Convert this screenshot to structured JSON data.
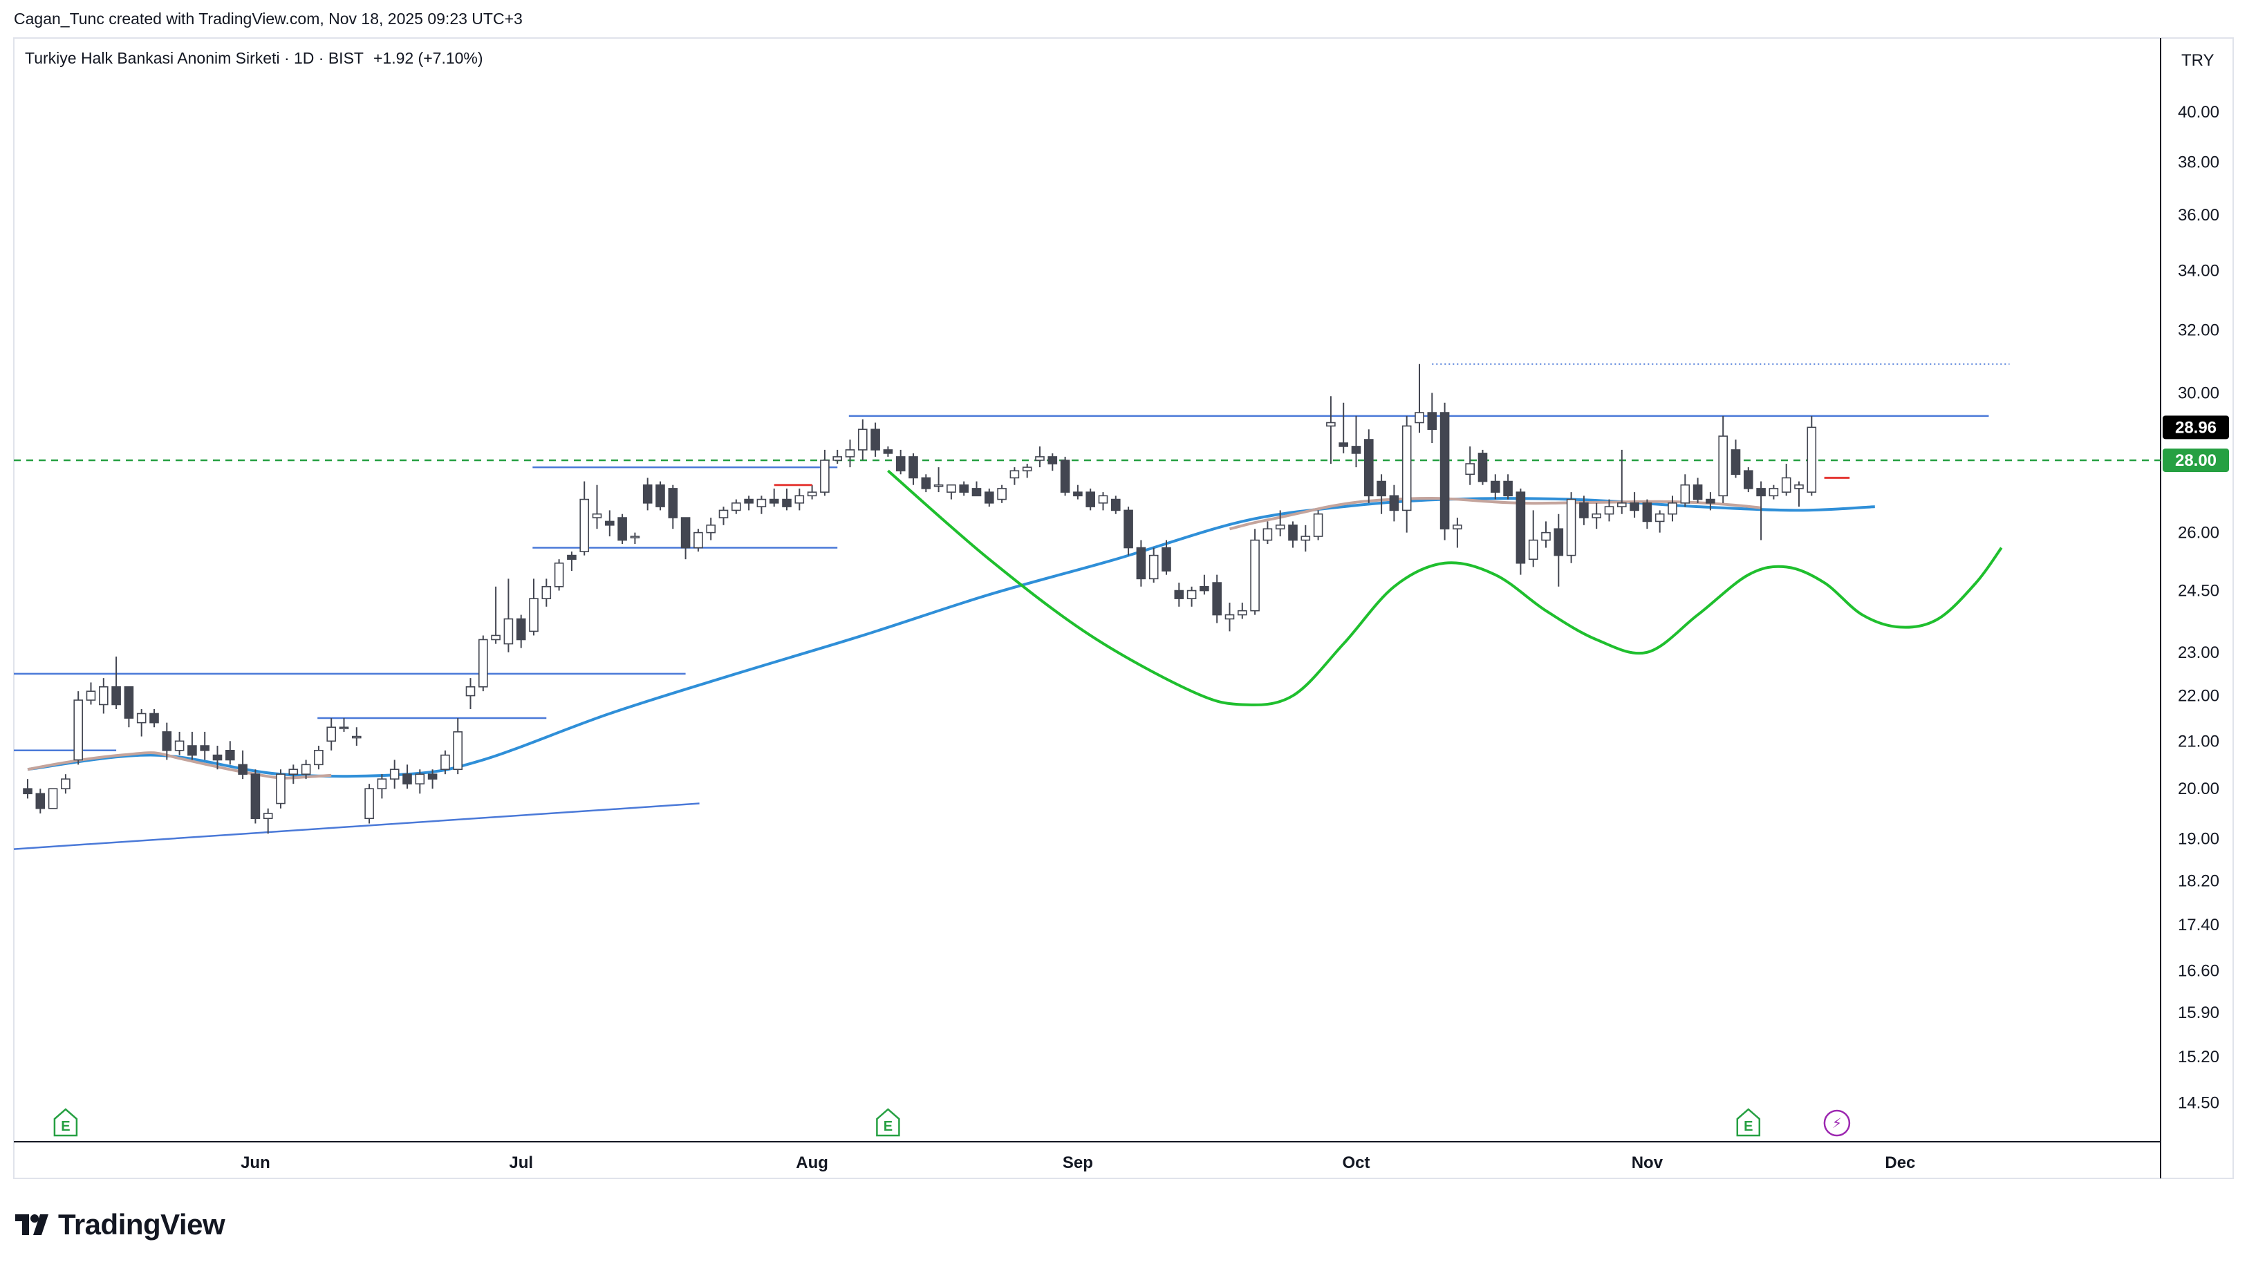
{
  "header": {
    "credit": "Cagan_Tunc created with TradingView.com, Nov 18, 2025 09:23 UTC+3"
  },
  "footer": {
    "brand": "TradingView"
  },
  "colors": {
    "up_body": "#ffffff",
    "down_body": "#434651",
    "wick": "#434651",
    "ma_blue": "#2f8fd8",
    "ma_brown": "#c4a49c",
    "trend_line": "#4a79d8",
    "curve_green": "#1fbf2e",
    "dashed_green": "#26a042",
    "tag_price_bg": "#000000",
    "tag_level_bg": "#26a042",
    "red_marker": "#e53935",
    "event_green": "#26a042",
    "event_purple": "#9c27b0"
  },
  "chart_data": {
    "type": "candlestick",
    "title": "Turkiye Halk Bankasi Anonim Sirketi · 1D · BIST",
    "change": "+1.92 (+7.10%)",
    "currency": "TRY",
    "y_scale": "log",
    "ylim": [
      14.0,
      43.0
    ],
    "y_ticks": [
      40.0,
      38.0,
      36.0,
      34.0,
      32.0,
      30.0,
      26.0,
      24.5,
      23.0,
      22.0,
      21.0,
      20.0,
      19.0,
      18.2,
      17.4,
      16.6,
      15.9,
      15.2,
      14.5
    ],
    "x_axis_labels": [
      {
        "date": "2025-06-02",
        "label": "Jun"
      },
      {
        "date": "2025-07-01",
        "label": "Jul"
      },
      {
        "date": "2025-08-01",
        "label": "Aug"
      },
      {
        "date": "2025-09-01",
        "label": "Sep"
      },
      {
        "date": "2025-10-01",
        "label": "Oct"
      },
      {
        "date": "2025-11-03",
        "label": "Nov"
      },
      {
        "date": "2025-12-01",
        "label": "Dec"
      }
    ],
    "last_price": {
      "value": 28.96,
      "label": "28.96"
    },
    "horizontal_level": {
      "value": 28.0,
      "label": "28.00"
    },
    "candles": [
      {
        "o": 20.0,
        "h": 20.2,
        "l": 19.8,
        "c": 19.9
      },
      {
        "o": 19.9,
        "h": 20.0,
        "l": 19.5,
        "c": 19.6
      },
      {
        "o": 19.6,
        "h": 20.0,
        "l": 19.6,
        "c": 20.0
      },
      {
        "o": 20.0,
        "h": 20.3,
        "l": 19.9,
        "c": 20.2
      },
      {
        "o": 20.6,
        "h": 22.1,
        "l": 20.5,
        "c": 21.9
      },
      {
        "o": 21.9,
        "h": 22.3,
        "l": 21.8,
        "c": 22.1
      },
      {
        "o": 21.8,
        "h": 22.4,
        "l": 21.6,
        "c": 22.2
      },
      {
        "o": 22.2,
        "h": 22.9,
        "l": 21.7,
        "c": 21.8
      },
      {
        "o": 22.2,
        "h": 22.2,
        "l": 21.3,
        "c": 21.5
      },
      {
        "o": 21.4,
        "h": 21.7,
        "l": 21.1,
        "c": 21.6
      },
      {
        "o": 21.6,
        "h": 21.7,
        "l": 21.3,
        "c": 21.4
      },
      {
        "o": 21.2,
        "h": 21.4,
        "l": 20.6,
        "c": 20.8
      },
      {
        "o": 20.8,
        "h": 21.2,
        "l": 20.7,
        "c": 21.0
      },
      {
        "o": 20.9,
        "h": 21.2,
        "l": 20.6,
        "c": 20.7
      },
      {
        "o": 20.9,
        "h": 21.2,
        "l": 20.6,
        "c": 20.8
      },
      {
        "o": 20.7,
        "h": 20.9,
        "l": 20.4,
        "c": 20.6
      },
      {
        "o": 20.8,
        "h": 21.0,
        "l": 20.5,
        "c": 20.6
      },
      {
        "o": 20.5,
        "h": 20.8,
        "l": 20.2,
        "c": 20.3
      },
      {
        "o": 20.3,
        "h": 20.4,
        "l": 19.3,
        "c": 19.4
      },
      {
        "o": 19.4,
        "h": 19.6,
        "l": 19.1,
        "c": 19.5
      },
      {
        "o": 19.7,
        "h": 20.4,
        "l": 19.6,
        "c": 20.3
      },
      {
        "o": 20.3,
        "h": 20.5,
        "l": 20.1,
        "c": 20.4
      },
      {
        "o": 20.3,
        "h": 20.6,
        "l": 20.2,
        "c": 20.5
      },
      {
        "o": 20.5,
        "h": 20.9,
        "l": 20.4,
        "c": 20.8
      },
      {
        "o": 21.0,
        "h": 21.5,
        "l": 20.8,
        "c": 21.3
      },
      {
        "o": 21.3,
        "h": 21.5,
        "l": 21.2,
        "c": 21.3
      },
      {
        "o": 21.1,
        "h": 21.3,
        "l": 20.9,
        "c": 21.1
      },
      {
        "o": 19.4,
        "h": 20.1,
        "l": 19.3,
        "c": 20.0
      },
      {
        "o": 20.0,
        "h": 20.3,
        "l": 19.8,
        "c": 20.2
      },
      {
        "o": 20.2,
        "h": 20.6,
        "l": 20.0,
        "c": 20.4
      },
      {
        "o": 20.3,
        "h": 20.5,
        "l": 20.0,
        "c": 20.1
      },
      {
        "o": 20.1,
        "h": 20.4,
        "l": 19.9,
        "c": 20.3
      },
      {
        "o": 20.3,
        "h": 20.4,
        "l": 20.0,
        "c": 20.2
      },
      {
        "o": 20.4,
        "h": 20.8,
        "l": 20.3,
        "c": 20.7
      },
      {
        "o": 20.4,
        "h": 21.5,
        "l": 20.3,
        "c": 21.2
      },
      {
        "o": 22.0,
        "h": 22.4,
        "l": 21.7,
        "c": 22.2
      },
      {
        "o": 22.2,
        "h": 23.4,
        "l": 22.1,
        "c": 23.3
      },
      {
        "o": 23.3,
        "h": 24.6,
        "l": 23.2,
        "c": 23.4
      },
      {
        "o": 23.2,
        "h": 24.8,
        "l": 23.0,
        "c": 23.8
      },
      {
        "o": 23.8,
        "h": 23.9,
        "l": 23.1,
        "c": 23.3
      },
      {
        "o": 23.5,
        "h": 24.8,
        "l": 23.4,
        "c": 24.3
      },
      {
        "o": 24.3,
        "h": 24.8,
        "l": 24.1,
        "c": 24.6
      },
      {
        "o": 24.6,
        "h": 25.3,
        "l": 24.5,
        "c": 25.2
      },
      {
        "o": 25.4,
        "h": 25.5,
        "l": 25.0,
        "c": 25.3
      },
      {
        "o": 25.5,
        "h": 27.4,
        "l": 25.4,
        "c": 26.9
      },
      {
        "o": 26.4,
        "h": 27.3,
        "l": 26.1,
        "c": 26.5
      },
      {
        "o": 26.3,
        "h": 26.6,
        "l": 25.9,
        "c": 26.2
      },
      {
        "o": 26.4,
        "h": 26.5,
        "l": 25.7,
        "c": 25.8
      },
      {
        "o": 25.9,
        "h": 26.0,
        "l": 25.7,
        "c": 25.9
      },
      {
        "o": 27.3,
        "h": 27.5,
        "l": 26.6,
        "c": 26.8
      },
      {
        "o": 27.3,
        "h": 27.4,
        "l": 26.6,
        "c": 26.7
      },
      {
        "o": 27.2,
        "h": 27.3,
        "l": 26.1,
        "c": 26.4
      },
      {
        "o": 26.4,
        "h": 26.4,
        "l": 25.3,
        "c": 25.6
      },
      {
        "o": 25.6,
        "h": 26.1,
        "l": 25.5,
        "c": 26.0
      },
      {
        "o": 26.0,
        "h": 26.4,
        "l": 25.8,
        "c": 26.2
      },
      {
        "o": 26.4,
        "h": 26.7,
        "l": 26.2,
        "c": 26.6
      },
      {
        "o": 26.6,
        "h": 26.9,
        "l": 26.5,
        "c": 26.8
      },
      {
        "o": 26.9,
        "h": 27.0,
        "l": 26.6,
        "c": 26.8
      },
      {
        "o": 26.7,
        "h": 27.0,
        "l": 26.5,
        "c": 26.9
      },
      {
        "o": 26.9,
        "h": 27.2,
        "l": 26.7,
        "c": 26.8
      },
      {
        "o": 26.9,
        "h": 27.2,
        "l": 26.6,
        "c": 26.7
      },
      {
        "o": 26.8,
        "h": 27.2,
        "l": 26.6,
        "c": 27.0
      },
      {
        "o": 27.0,
        "h": 27.3,
        "l": 26.9,
        "c": 27.1
      },
      {
        "o": 27.1,
        "h": 28.3,
        "l": 27.0,
        "c": 28.0
      },
      {
        "o": 28.0,
        "h": 28.3,
        "l": 27.9,
        "c": 28.1
      },
      {
        "o": 28.1,
        "h": 28.6,
        "l": 27.8,
        "c": 28.3
      },
      {
        "o": 28.3,
        "h": 29.2,
        "l": 28.0,
        "c": 28.9
      },
      {
        "o": 28.9,
        "h": 29.1,
        "l": 28.1,
        "c": 28.3
      },
      {
        "o": 28.3,
        "h": 28.4,
        "l": 28.1,
        "c": 28.2
      },
      {
        "o": 28.1,
        "h": 28.3,
        "l": 27.6,
        "c": 27.7
      },
      {
        "o": 28.1,
        "h": 28.2,
        "l": 27.3,
        "c": 27.5
      },
      {
        "o": 27.5,
        "h": 27.6,
        "l": 27.1,
        "c": 27.2
      },
      {
        "o": 27.3,
        "h": 27.8,
        "l": 27.1,
        "c": 27.3
      },
      {
        "o": 27.1,
        "h": 27.3,
        "l": 26.9,
        "c": 27.3
      },
      {
        "o": 27.3,
        "h": 27.4,
        "l": 27.0,
        "c": 27.1
      },
      {
        "o": 27.2,
        "h": 27.4,
        "l": 27.0,
        "c": 27.0
      },
      {
        "o": 27.1,
        "h": 27.2,
        "l": 26.7,
        "c": 26.8
      },
      {
        "o": 26.9,
        "h": 27.3,
        "l": 26.8,
        "c": 27.2
      },
      {
        "o": 27.5,
        "h": 27.8,
        "l": 27.3,
        "c": 27.7
      },
      {
        "o": 27.7,
        "h": 27.9,
        "l": 27.5,
        "c": 27.8
      },
      {
        "o": 28.0,
        "h": 28.4,
        "l": 27.8,
        "c": 28.1
      },
      {
        "o": 28.1,
        "h": 28.2,
        "l": 27.7,
        "c": 27.9
      },
      {
        "o": 28.0,
        "h": 28.1,
        "l": 27.0,
        "c": 27.1
      },
      {
        "o": 27.1,
        "h": 27.3,
        "l": 26.9,
        "c": 27.0
      },
      {
        "o": 27.1,
        "h": 27.2,
        "l": 26.6,
        "c": 26.7
      },
      {
        "o": 26.8,
        "h": 27.1,
        "l": 26.6,
        "c": 27.0
      },
      {
        "o": 26.9,
        "h": 27.0,
        "l": 26.5,
        "c": 26.6
      },
      {
        "o": 26.6,
        "h": 26.7,
        "l": 25.4,
        "c": 25.6
      },
      {
        "o": 25.6,
        "h": 25.8,
        "l": 24.6,
        "c": 24.8
      },
      {
        "o": 24.8,
        "h": 25.6,
        "l": 24.7,
        "c": 25.4
      },
      {
        "o": 25.6,
        "h": 25.8,
        "l": 24.9,
        "c": 25.0
      },
      {
        "o": 24.5,
        "h": 24.7,
        "l": 24.1,
        "c": 24.3
      },
      {
        "o": 24.3,
        "h": 24.6,
        "l": 24.1,
        "c": 24.5
      },
      {
        "o": 24.6,
        "h": 24.9,
        "l": 24.4,
        "c": 24.5
      },
      {
        "o": 24.7,
        "h": 24.9,
        "l": 23.7,
        "c": 23.9
      },
      {
        "o": 23.8,
        "h": 24.2,
        "l": 23.5,
        "c": 23.9
      },
      {
        "o": 23.9,
        "h": 24.2,
        "l": 23.8,
        "c": 24.0
      },
      {
        "o": 24.0,
        "h": 26.1,
        "l": 23.9,
        "c": 25.8
      },
      {
        "o": 25.8,
        "h": 26.3,
        "l": 25.7,
        "c": 26.1
      },
      {
        "o": 26.1,
        "h": 26.6,
        "l": 25.9,
        "c": 26.2
      },
      {
        "o": 26.2,
        "h": 26.3,
        "l": 25.6,
        "c": 25.8
      },
      {
        "o": 25.8,
        "h": 26.2,
        "l": 25.5,
        "c": 25.9
      },
      {
        "o": 25.9,
        "h": 26.6,
        "l": 25.8,
        "c": 26.5
      },
      {
        "o": 29.0,
        "h": 29.9,
        "l": 27.9,
        "c": 29.1
      },
      {
        "o": 28.5,
        "h": 29.7,
        "l": 28.2,
        "c": 28.4
      },
      {
        "o": 28.4,
        "h": 29.3,
        "l": 27.8,
        "c": 28.2
      },
      {
        "o": 28.6,
        "h": 28.9,
        "l": 26.8,
        "c": 27.0
      },
      {
        "o": 27.4,
        "h": 27.6,
        "l": 26.5,
        "c": 27.0
      },
      {
        "o": 27.0,
        "h": 27.3,
        "l": 26.3,
        "c": 26.6
      },
      {
        "o": 26.6,
        "h": 29.3,
        "l": 26.0,
        "c": 29.0
      },
      {
        "o": 29.1,
        "h": 30.9,
        "l": 28.8,
        "c": 29.4
      },
      {
        "o": 29.4,
        "h": 30.0,
        "l": 28.5,
        "c": 28.9
      },
      {
        "o": 29.4,
        "h": 29.7,
        "l": 25.8,
        "c": 26.1
      },
      {
        "o": 26.1,
        "h": 26.4,
        "l": 25.6,
        "c": 26.2
      },
      {
        "o": 27.6,
        "h": 28.4,
        "l": 27.3,
        "c": 27.9
      },
      {
        "o": 28.2,
        "h": 28.3,
        "l": 27.3,
        "c": 27.4
      },
      {
        "o": 27.4,
        "h": 27.6,
        "l": 26.9,
        "c": 27.1
      },
      {
        "o": 27.4,
        "h": 27.6,
        "l": 26.9,
        "c": 27.0
      },
      {
        "o": 27.1,
        "h": 27.2,
        "l": 24.9,
        "c": 25.2
      },
      {
        "o": 25.3,
        "h": 26.6,
        "l": 25.1,
        "c": 25.8
      },
      {
        "o": 25.8,
        "h": 26.3,
        "l": 25.6,
        "c": 26.0
      },
      {
        "o": 26.1,
        "h": 26.5,
        "l": 24.6,
        "c": 25.4
      },
      {
        "o": 25.4,
        "h": 27.1,
        "l": 25.2,
        "c": 26.9
      },
      {
        "o": 26.8,
        "h": 27.0,
        "l": 26.2,
        "c": 26.4
      },
      {
        "o": 26.4,
        "h": 26.8,
        "l": 26.1,
        "c": 26.5
      },
      {
        "o": 26.5,
        "h": 26.9,
        "l": 26.3,
        "c": 26.7
      },
      {
        "o": 26.7,
        "h": 28.3,
        "l": 26.5,
        "c": 26.8
      },
      {
        "o": 26.8,
        "h": 27.1,
        "l": 26.4,
        "c": 26.6
      },
      {
        "o": 26.8,
        "h": 26.9,
        "l": 26.1,
        "c": 26.3
      },
      {
        "o": 26.3,
        "h": 26.6,
        "l": 26.0,
        "c": 26.5
      },
      {
        "o": 26.5,
        "h": 27.0,
        "l": 26.3,
        "c": 26.8
      },
      {
        "o": 26.8,
        "h": 27.6,
        "l": 26.7,
        "c": 27.3
      },
      {
        "o": 27.3,
        "h": 27.5,
        "l": 26.8,
        "c": 26.9
      },
      {
        "o": 26.9,
        "h": 27.1,
        "l": 26.6,
        "c": 26.8
      },
      {
        "o": 27.0,
        "h": 29.3,
        "l": 26.8,
        "c": 28.7
      },
      {
        "o": 28.3,
        "h": 28.6,
        "l": 27.5,
        "c": 27.6
      },
      {
        "o": 27.7,
        "h": 27.8,
        "l": 27.1,
        "c": 27.2
      },
      {
        "o": 27.2,
        "h": 27.4,
        "l": 25.8,
        "c": 27.0
      },
      {
        "o": 27.0,
        "h": 27.3,
        "l": 26.9,
        "c": 27.2
      },
      {
        "o": 27.1,
        "h": 27.9,
        "l": 27.0,
        "c": 27.5
      },
      {
        "o": 27.2,
        "h": 27.4,
        "l": 26.7,
        "c": 27.3
      },
      {
        "o": 27.1,
        "h": 29.3,
        "l": 27.0,
        "c": 28.96
      }
    ],
    "overlays": {
      "ma_blue": [
        {
          "i": 0,
          "v": 20.4
        },
        {
          "i": 10,
          "v": 20.7
        },
        {
          "i": 20,
          "v": 20.3
        },
        {
          "i": 30,
          "v": 20.3
        },
        {
          "i": 36,
          "v": 20.6
        },
        {
          "i": 46,
          "v": 21.6
        },
        {
          "i": 56,
          "v": 22.5
        },
        {
          "i": 66,
          "v": 23.4
        },
        {
          "i": 76,
          "v": 24.4
        },
        {
          "i": 86,
          "v": 25.3
        },
        {
          "i": 96,
          "v": 26.3
        },
        {
          "i": 104,
          "v": 26.7
        },
        {
          "i": 112,
          "v": 26.9
        },
        {
          "i": 122,
          "v": 26.9
        },
        {
          "i": 132,
          "v": 26.7
        },
        {
          "i": 140,
          "v": 26.6
        },
        {
          "i": 146,
          "v": 26.7
        }
      ],
      "ma_brown_ranges": [
        [
          0,
          24
        ],
        [
          95,
          138
        ]
      ],
      "green_curve": [
        {
          "i": 68,
          "v": 27.7
        },
        {
          "i": 76,
          "v": 25.3
        },
        {
          "i": 84,
          "v": 23.4
        },
        {
          "i": 92,
          "v": 22.1
        },
        {
          "i": 96,
          "v": 21.8
        },
        {
          "i": 100,
          "v": 22.0
        },
        {
          "i": 104,
          "v": 23.2
        },
        {
          "i": 108,
          "v": 24.6
        },
        {
          "i": 112,
          "v": 25.2
        },
        {
          "i": 116,
          "v": 24.9
        },
        {
          "i": 120,
          "v": 24.0
        },
        {
          "i": 124,
          "v": 23.3
        },
        {
          "i": 128,
          "v": 23.0
        },
        {
          "i": 132,
          "v": 23.9
        },
        {
          "i": 136,
          "v": 24.9
        },
        {
          "i": 139,
          "v": 25.1
        },
        {
          "i": 142,
          "v": 24.7
        },
        {
          "i": 145,
          "v": 23.9
        },
        {
          "i": 148,
          "v": 23.6
        },
        {
          "i": 151,
          "v": 23.8
        },
        {
          "i": 154,
          "v": 24.7
        },
        {
          "i": 156,
          "v": 25.6
        }
      ],
      "support_lines": [
        {
          "i1": 0,
          "i2": 52,
          "v": 22.5
        },
        {
          "i1": 0,
          "i2": 7,
          "v": 20.8
        },
        {
          "i1": 24,
          "i2": 41,
          "v": 21.5
        },
        {
          "i1": 41,
          "i2": 64,
          "v": 27.8
        },
        {
          "i1": 41,
          "i2": 64,
          "v": 25.6
        },
        {
          "i1": 66,
          "i2": 155,
          "v": 29.3
        }
      ],
      "rising_trendline": {
        "i1": 0,
        "v1": 18.8,
        "i2": 52,
        "v2": 19.7
      },
      "dotted_resistance": {
        "i1": 111,
        "i2": 155,
        "v": 30.9
      },
      "red_markers": [
        {
          "i1": 59,
          "i2": 62,
          "v": 27.3
        },
        {
          "i1": 142,
          "i2": 144,
          "v": 27.5
        }
      ],
      "events": [
        {
          "i": 3,
          "type": "earnings",
          "label": "E"
        },
        {
          "i": 68,
          "type": "earnings",
          "label": "E"
        },
        {
          "i": 136,
          "type": "earnings",
          "label": "E"
        },
        {
          "i": 143,
          "type": "dividend",
          "label": "⚡"
        }
      ]
    }
  }
}
